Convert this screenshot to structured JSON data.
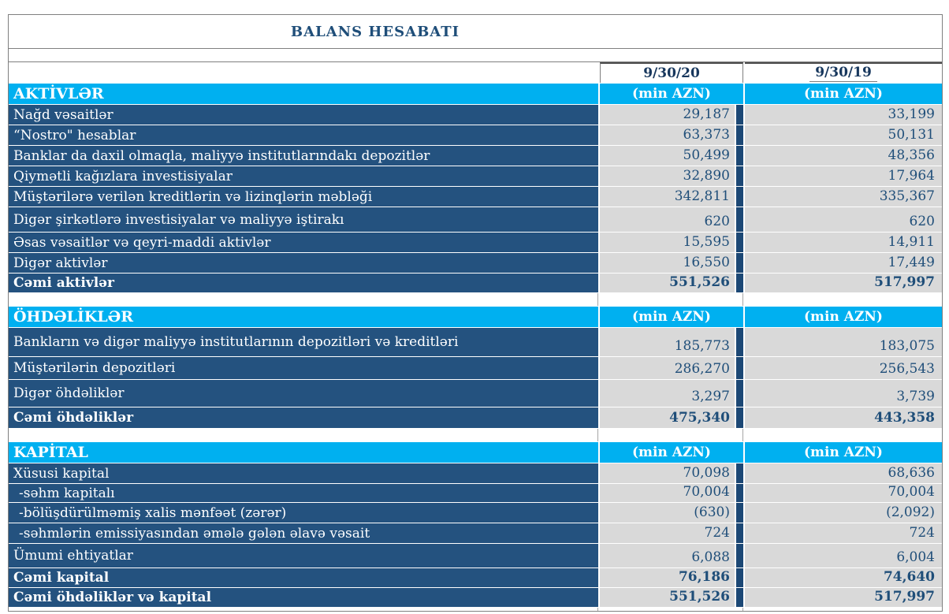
{
  "title": "BALANS HESABATI",
  "header": {
    "date_col1": "9/30/20",
    "date_col2": "9/30/19",
    "unit_label": "(min AZN)"
  },
  "colors": {
    "accent_cyan": "#00B0F0",
    "row_navy": "#24527F",
    "value_gray": "#D9D9D9",
    "text_navy": "#1F4E79"
  },
  "sections": [
    {
      "heading": "AKTİVLƏR",
      "rows": [
        {
          "label": "Nağd vəsaitlər",
          "v1": "29,187",
          "v2": "33,199"
        },
        {
          "label": "“Nostro\" hesablar",
          "v1": "63,373",
          "v2": "50,131"
        },
        {
          "label": "Banklar da daxil olmaqla, maliyyə institutlarındakı depozitlər",
          "v1": "50,499",
          "v2": "48,356"
        },
        {
          "label": "Qiymətli kağızlara investisiyalar",
          "v1": "32,890",
          "v2": "17,964"
        },
        {
          "label": "Müştərilərə verilən kreditlərin və lizinqlərin məbləği",
          "v1": "342,811",
          "v2": "335,367"
        },
        {
          "label": "Digər  şirkətlərə  investisiyalar və maliyyə iştirakı",
          "v1": "620",
          "v2": "620"
        },
        {
          "label": "Əsas vəsaitlər və qeyri-maddi aktivlər",
          "v1": "15,595",
          "v2": "14,911"
        },
        {
          "label": "Digər aktivlər",
          "v1": "16,550",
          "v2": "17,449"
        },
        {
          "label": "Cəmi aktivlər",
          "v1": "551,526",
          "v2": "517,997",
          "bold": true
        }
      ]
    },
    {
      "heading": "ÖHDƏLİKLƏR",
      "rows": [
        {
          "label": "Bankların və digər maliyyə institutlarının depozitləri və kreditləri",
          "v1": "185,773",
          "v2": "183,075"
        },
        {
          "label": "Müştərilərin depozitləri",
          "v1": "286,270",
          "v2": "256,543"
        },
        {
          "label": "Digər öhdəliklər",
          "v1": "3,297",
          "v2": "3,739"
        },
        {
          "label": "Cəmi öhdəliklər",
          "v1": "475,340",
          "v2": "443,358",
          "bold": true
        }
      ]
    },
    {
      "heading": "KAPİTAL",
      "rows": [
        {
          "label": "Xüsusi kapital",
          "v1": "70,098",
          "v2": "68,636"
        },
        {
          "label": "-səhm kapitalı",
          "v1": "70,004",
          "v2": "70,004",
          "indent": true
        },
        {
          "label": "-bölüşdürülməmiş xalis mənfəət (zərər)",
          "v1": "(630)",
          "v2": "(2,092)",
          "indent": true
        },
        {
          "label": "-səhmlərin emissiyasından əmələ gələn əlavə vəsait",
          "v1": "724",
          "v2": "724",
          "indent": true
        },
        {
          "label": "Ümumi ehtiyatlar",
          "v1": "6,088",
          "v2": "6,004"
        },
        {
          "label": "Cəmi kapital",
          "v1": "76,186",
          "v2": "74,640",
          "bold": true
        },
        {
          "label": "Cəmi öhdəliklər və kapital",
          "v1": "551,526",
          "v2": "517,997",
          "bold": true
        }
      ]
    }
  ]
}
